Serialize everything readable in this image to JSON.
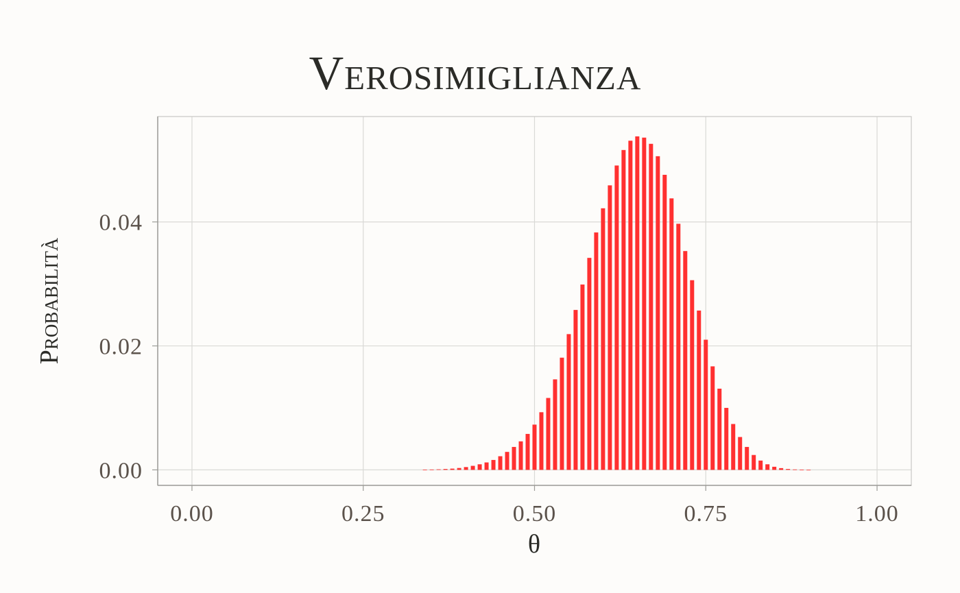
{
  "chart_data": {
    "type": "bar",
    "title": "Verosimiglianza",
    "xlabel": "θ",
    "ylabel": "Probabilità",
    "xlim": [
      -0.05,
      1.05
    ],
    "ylim": [
      -0.0025,
      0.057
    ],
    "x_ticks": [
      0,
      0.25,
      0.5,
      0.75,
      1
    ],
    "x_tick_labels": [
      "0.00",
      "0.25",
      "0.50",
      "0.75",
      "1.00"
    ],
    "y_ticks": [
      0,
      0.02,
      0.04
    ],
    "y_tick_labels": [
      "0.00",
      "0.02",
      "0.04"
    ],
    "grid": true,
    "bar_color": "#ff3030",
    "x": [
      0.34,
      0.35,
      0.36,
      0.37,
      0.38,
      0.39,
      0.4,
      0.41,
      0.42,
      0.43,
      0.44,
      0.45,
      0.46,
      0.47,
      0.48,
      0.49,
      0.5,
      0.51,
      0.52,
      0.53,
      0.54,
      0.55,
      0.56,
      0.57,
      0.58,
      0.59,
      0.6,
      0.61,
      0.62,
      0.63,
      0.64,
      0.65,
      0.66,
      0.67,
      0.68,
      0.69,
      0.7,
      0.71,
      0.72,
      0.73,
      0.74,
      0.75,
      0.76,
      0.77,
      0.78,
      0.79,
      0.8,
      0.81,
      0.82,
      0.83,
      0.84,
      0.85,
      0.86,
      0.87,
      0.88,
      0.89,
      0.9
    ],
    "values": [
      3e-05,
      6e-05,
      9e-05,
      0.00014,
      0.0002,
      0.0003,
      0.00045,
      0.00065,
      0.0009,
      0.0012,
      0.0016,
      0.0022,
      0.0029,
      0.0037,
      0.0046,
      0.0058,
      0.0073,
      0.0093,
      0.0116,
      0.0146,
      0.0181,
      0.0219,
      0.0258,
      0.0299,
      0.0342,
      0.0383,
      0.0422,
      0.0459,
      0.0491,
      0.0516,
      0.0531,
      0.0538,
      0.0536,
      0.0526,
      0.0506,
      0.0476,
      0.0438,
      0.0397,
      0.0353,
      0.0306,
      0.0257,
      0.021,
      0.0167,
      0.0131,
      0.01,
      0.0074,
      0.0053,
      0.0037,
      0.0024,
      0.0015,
      0.0009,
      0.0005,
      0.00028,
      0.00014,
      7e-05,
      3e-05,
      1e-05
    ]
  }
}
